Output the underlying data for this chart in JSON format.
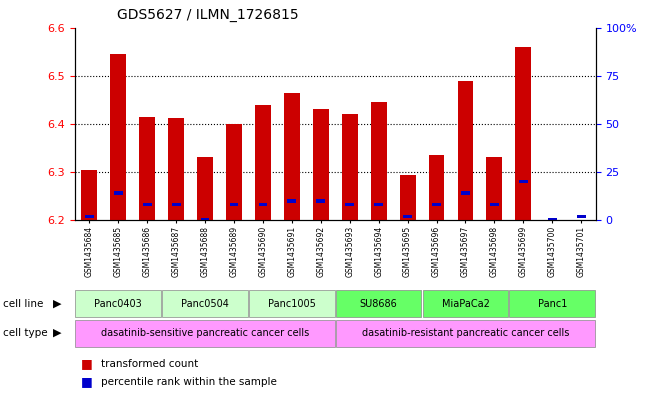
{
  "title": "GDS5627 / ILMN_1726815",
  "samples": [
    "GSM1435684",
    "GSM1435685",
    "GSM1435686",
    "GSM1435687",
    "GSM1435688",
    "GSM1435689",
    "GSM1435690",
    "GSM1435691",
    "GSM1435692",
    "GSM1435693",
    "GSM1435694",
    "GSM1435695",
    "GSM1435696",
    "GSM1435697",
    "GSM1435698",
    "GSM1435699",
    "GSM1435700",
    "GSM1435701"
  ],
  "transformed_count": [
    6.305,
    6.545,
    6.415,
    6.413,
    6.33,
    6.4,
    6.44,
    6.465,
    6.43,
    6.42,
    6.445,
    6.293,
    6.336,
    6.488,
    6.33,
    6.56,
    6.2,
    6.2
  ],
  "percentile_rank": [
    2,
    14,
    8,
    8,
    0,
    8,
    8,
    10,
    10,
    8,
    8,
    2,
    8,
    14,
    8,
    20,
    0,
    2
  ],
  "ylim_left": [
    6.2,
    6.6
  ],
  "ylim_right": [
    0,
    100
  ],
  "yticks_left": [
    6.2,
    6.3,
    6.4,
    6.5,
    6.6
  ],
  "yticks_right": [
    0,
    25,
    50,
    75,
    100
  ],
  "ytick_labels_right": [
    "0",
    "25",
    "50",
    "75",
    "100%"
  ],
  "bar_color": "#cc0000",
  "percentile_color": "#0000cc",
  "cell_lines": [
    {
      "label": "Panc0403",
      "start": 0,
      "end": 3,
      "color": "#ccffcc"
    },
    {
      "label": "Panc0504",
      "start": 3,
      "end": 6,
      "color": "#ccffcc"
    },
    {
      "label": "Panc1005",
      "start": 6,
      "end": 9,
      "color": "#ccffcc"
    },
    {
      "label": "SU8686",
      "start": 9,
      "end": 12,
      "color": "#66ff66"
    },
    {
      "label": "MiaPaCa2",
      "start": 12,
      "end": 15,
      "color": "#66ff66"
    },
    {
      "label": "Panc1",
      "start": 15,
      "end": 18,
      "color": "#66ff66"
    }
  ],
  "cell_type_sensitive": {
    "label": "dasatinib-sensitive pancreatic cancer cells",
    "start": 0,
    "end": 9,
    "color": "#ff99ff"
  },
  "cell_type_resistant": {
    "label": "dasatinib-resistant pancreatic cancer cells",
    "start": 9,
    "end": 18,
    "color": "#ff99ff"
  },
  "bg_color": "#ffffff",
  "bar_width": 0.55
}
